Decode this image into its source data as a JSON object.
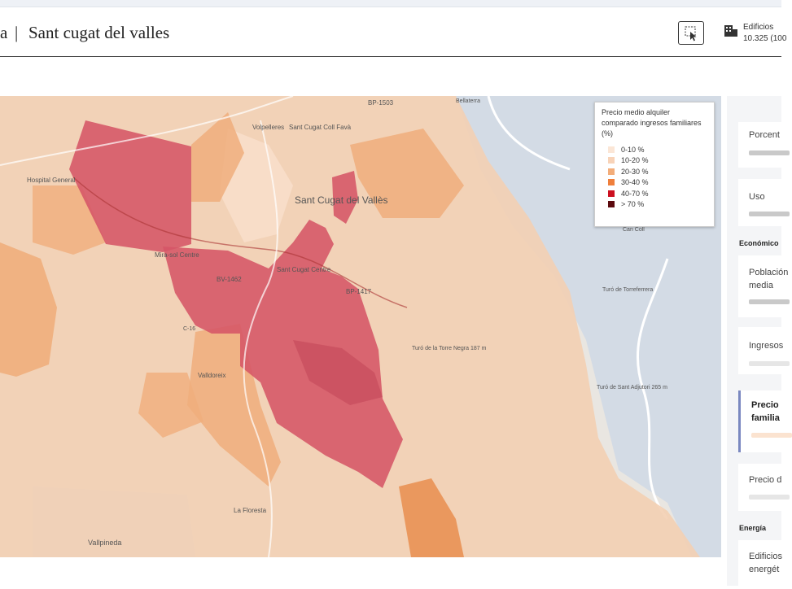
{
  "header": {
    "breadcrumb": "a",
    "separator": "|",
    "title": "Sant cugat del valles",
    "stat_label": "Edificios",
    "stat_value": "10.325 (100"
  },
  "legend": {
    "title": "Precio medio alquiler comparado ingresos familiares (%)",
    "items": [
      {
        "label": "0-10 %",
        "color": "#fbe6d6"
      },
      {
        "label": "10-20 %",
        "color": "#f8d3b8"
      },
      {
        "label": "20-30 %",
        "color": "#f3ad7a"
      },
      {
        "label": "30-40 %",
        "color": "#ef7f3c"
      },
      {
        "label": "40-70 %",
        "color": "#cc1020"
      },
      {
        "label": "> 70 %",
        "color": "#5c0a0e"
      }
    ]
  },
  "sidebar": {
    "items": [
      "Porcent",
      "Uso",
      "Población media",
      "Ingresos",
      "Precio familia",
      "Precio d",
      "Edificios energét"
    ],
    "sections": [
      "Económico",
      "Energía"
    ]
  },
  "map_labels": [
    "Sant Cugat del Vallès",
    "Volpelleres",
    "Sant Cugat Coll Favà",
    "Hospital General",
    "Mira-sol Centre",
    "Sant Cugat Centre",
    "BV-1462",
    "BP-1417",
    "BP-1503",
    "Valldoreix",
    "La Floresta",
    "Vallpineda",
    "Turó de la Torre Negra 187 m",
    "Turó de Sant Adjutori 265 m",
    "Turó de Torreferrera",
    "Can Coll",
    "C-16",
    "Bellaterra"
  ]
}
